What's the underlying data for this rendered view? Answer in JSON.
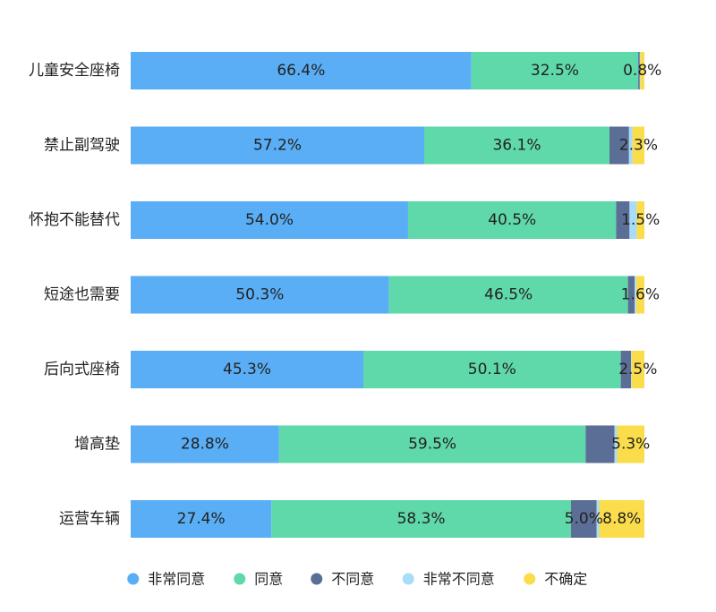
{
  "chart_data": {
    "type": "bar",
    "orientation": "horizontal",
    "stacked": true,
    "percent": true,
    "categories": [
      "儿童安全座椅",
      "禁止副驾驶",
      "怀抱不能替代",
      "短途也需要",
      "后向式座椅",
      "增高垫",
      "运营车辆"
    ],
    "series": [
      {
        "name": "非常同意",
        "color": "#5aaef5",
        "values": [
          66.4,
          57.2,
          54.0,
          50.3,
          45.3,
          28.8,
          27.4
        ]
      },
      {
        "name": "同意",
        "color": "#5fd9a9",
        "values": [
          32.5,
          36.1,
          40.5,
          46.5,
          50.1,
          59.5,
          58.3
        ]
      },
      {
        "name": "不同意",
        "color": "#5b6e96",
        "values": [
          0.3,
          3.8,
          2.6,
          1.3,
          2.0,
          5.6,
          5.0
        ]
      },
      {
        "name": "非常不同意",
        "color": "#a9dcf7",
        "values": [
          0.1,
          0.7,
          1.4,
          0.3,
          0.1,
          0.5,
          0.5
        ]
      },
      {
        "name": "不确定",
        "color": "#fbdc4b",
        "values": [
          0.8,
          2.3,
          1.5,
          1.6,
          2.5,
          5.3,
          8.8
        ]
      }
    ],
    "data_labels": [
      [
        "66.4%",
        "32.5%",
        "",
        "",
        "0.8%"
      ],
      [
        "57.2%",
        "36.1%",
        "",
        "",
        "2.3%"
      ],
      [
        "54.0%",
        "40.5%",
        "",
        "",
        "1.5%"
      ],
      [
        "50.3%",
        "46.5%",
        "",
        "",
        "1.6%"
      ],
      [
        "45.3%",
        "50.1%",
        "",
        "",
        "2.5%"
      ],
      [
        "28.8%",
        "59.5%",
        "",
        "",
        "5.3%"
      ],
      [
        "27.4%",
        "58.3%",
        "5.0%",
        "",
        "8.8%"
      ]
    ],
    "xlim": [
      0,
      100
    ],
    "legend": {
      "position": "bottom",
      "marker": "circle"
    },
    "grid": false
  }
}
